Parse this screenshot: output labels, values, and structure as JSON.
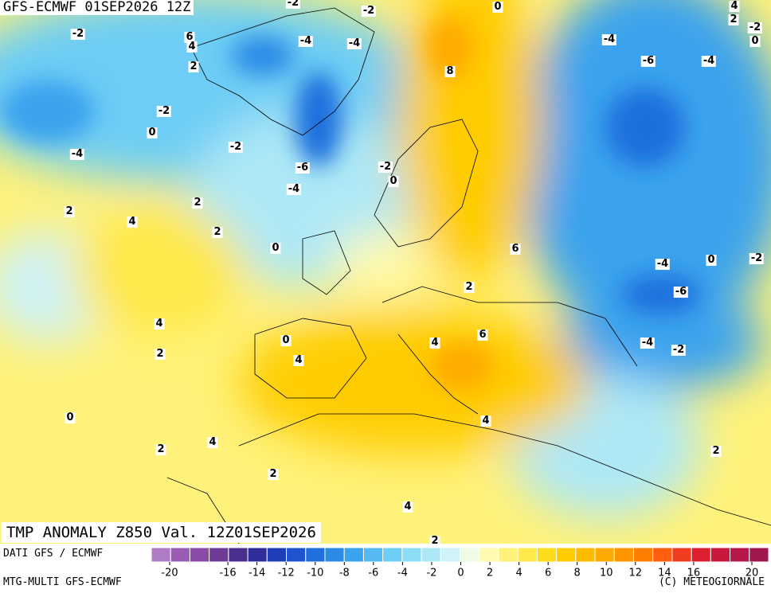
{
  "header": {
    "title": "GFS-ECMWF 01SEP2026 12Z"
  },
  "map": {
    "field_title": "TMP ANOMALY Z850 Val. 12Z01SEP2026",
    "contour_labels": [
      -2,
      6,
      4,
      2,
      -4,
      -4,
      -2,
      -2,
      8,
      0,
      -4,
      -6,
      -4,
      4,
      2,
      -2,
      0,
      -2,
      0,
      -4,
      -2,
      -6,
      -2,
      0,
      -4,
      2,
      2,
      4,
      2,
      0,
      6,
      -4,
      0,
      -2,
      -6,
      2,
      4,
      2,
      0,
      4,
      4,
      6,
      -4,
      -2,
      0,
      4,
      4,
      2,
      2,
      2,
      4,
      2
    ]
  },
  "legend": {
    "colors": [
      "#b07cc6",
      "#9a5cb4",
      "#8a4aa8",
      "#6e3c96",
      "#4b2f8f",
      "#2f2c9c",
      "#1f3fb8",
      "#1e55cf",
      "#1f6fdd",
      "#2a8ae5",
      "#3aa3ee",
      "#55baf2",
      "#6dcdf5",
      "#8cdcf5",
      "#aee8f6",
      "#cff3f7",
      "#effbe6",
      "#fffbb0",
      "#fff27a",
      "#ffe84a",
      "#ffdc1a",
      "#ffcc00",
      "#ffbb00",
      "#ffaa00",
      "#ff9600",
      "#ff7e00",
      "#ff5e10",
      "#f03c20",
      "#dc2030",
      "#c8183c",
      "#b41848",
      "#a01850"
    ],
    "ticks": [
      -20,
      -16,
      -14,
      -12,
      -10,
      -8,
      -6,
      -4,
      -2,
      0,
      2,
      4,
      6,
      8,
      10,
      12,
      14,
      16,
      20
    ]
  },
  "footer": {
    "source": "DATI GFS / ECMWF",
    "model": "MTG-MULTI GFS-ECMWF",
    "copyright": "(C) METEOGIORNALE"
  }
}
